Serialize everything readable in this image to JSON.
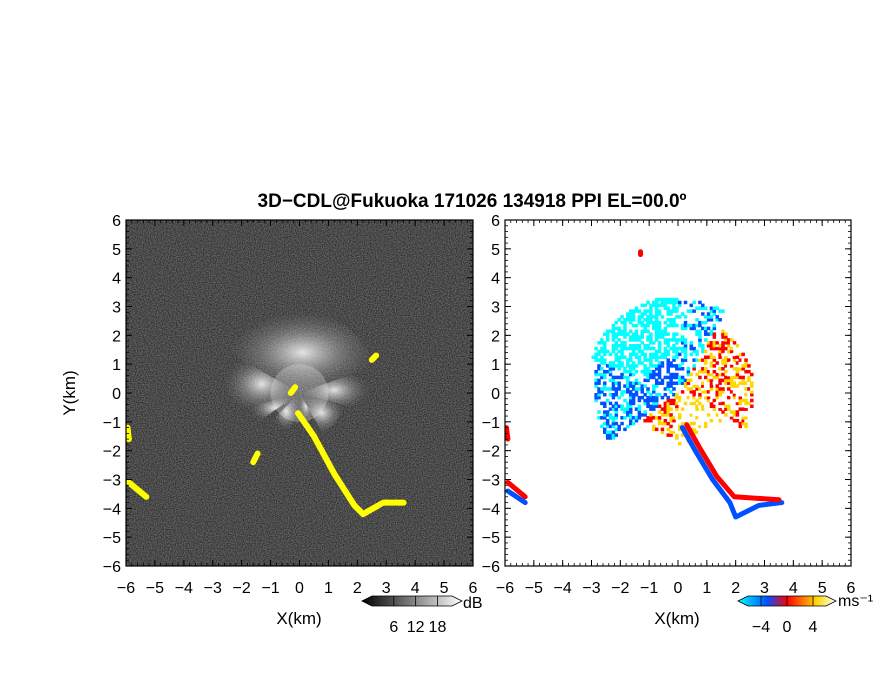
{
  "title": "3D−CDL@Fukuoka 171026 134918 PPI EL=00.0º",
  "chart_data": [
    {
      "type": "heatmap",
      "panel": "left",
      "quantity": "SNR",
      "xlabel": "X(km)",
      "ylabel": "Y(km)",
      "xlim": [
        -6,
        6
      ],
      "ylim": [
        -6,
        6
      ],
      "xticks": [
        -6,
        -5,
        -4,
        -3,
        -2,
        -1,
        0,
        1,
        2,
        3,
        4,
        5,
        6
      ],
      "yticks": [
        -6,
        -5,
        -4,
        -3,
        -2,
        -1,
        0,
        1,
        2,
        3,
        4,
        5,
        6
      ],
      "xtick_labels": [
        "−6",
        "−5",
        "−4",
        "−3",
        "−2",
        "−1",
        "0",
        "1",
        "2",
        "3",
        "4",
        "5",
        "6"
      ],
      "ytick_labels": [
        "−6",
        "−5",
        "−4",
        "−3",
        "−2",
        "−1",
        "0",
        "1",
        "2",
        "3",
        "4",
        "5",
        "6"
      ],
      "background_color": "#2a2a2a",
      "echo_color": "#ffffff",
      "highlight_color": "#ffff00",
      "colorbar": {
        "unit": "dB",
        "ticks": [
          6,
          12,
          18
        ],
        "tick_labels": [
          "6",
          "12",
          "18"
        ],
        "colors": [
          "#000000",
          "#ffffff"
        ]
      }
    },
    {
      "type": "heatmap",
      "panel": "right",
      "quantity": "radial velocity",
      "xlabel": "X(km)",
      "ylabel": "",
      "xlim": [
        -6,
        6
      ],
      "ylim": [
        -6,
        6
      ],
      "xticks": [
        -6,
        -5,
        -4,
        -3,
        -2,
        -1,
        0,
        1,
        2,
        3,
        4,
        5,
        6
      ],
      "yticks": [
        -6,
        -5,
        -4,
        -3,
        -2,
        -1,
        0,
        1,
        2,
        3,
        4,
        5,
        6
      ],
      "xtick_labels": [
        "−6",
        "−5",
        "−4",
        "−3",
        "−2",
        "−1",
        "0",
        "1",
        "2",
        "3",
        "4",
        "5",
        "6"
      ],
      "ytick_labels": [
        "−6",
        "−5",
        "−4",
        "−3",
        "−2",
        "−1",
        "0",
        "1",
        "2",
        "3",
        "4",
        "5",
        "6"
      ],
      "background_color": "#ffffff",
      "colorbar": {
        "unit": "ms⁻¹",
        "ticks": [
          -4,
          0,
          4
        ],
        "tick_labels": [
          "−4",
          "0",
          "4"
        ],
        "colors": [
          "#00ffff",
          "#0050ff",
          "#ff0000",
          "#ffd700",
          "#ffffff"
        ]
      }
    }
  ]
}
